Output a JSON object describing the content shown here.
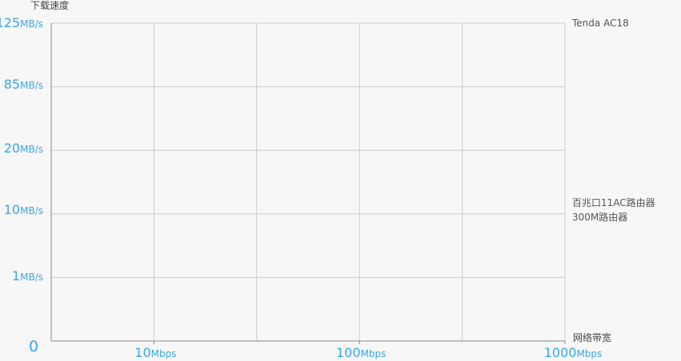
{
  "chart_data": {
    "type": "line",
    "title": "",
    "ylabel": "下载速度",
    "xlabel": "网络带宽",
    "y_ticks": [
      {
        "num": "0",
        "unit": ""
      },
      {
        "num": "1",
        "unit": "MB/s"
      },
      {
        "num": "10",
        "unit": "MB/s"
      },
      {
        "num": "20",
        "unit": "MB/s"
      },
      {
        "num": "85",
        "unit": "MB/s"
      },
      {
        "num": "125",
        "unit": "MB/s"
      }
    ],
    "x_ticks": [
      {
        "num": "10",
        "unit": "Mbps"
      },
      {
        "num": "100",
        "unit": "Mbps"
      },
      {
        "num": "1000",
        "unit": "Mbps"
      }
    ],
    "series": [
      {
        "name": "Tenda AC18"
      },
      {
        "name": "百兆口11AC路由器"
      },
      {
        "name": "300M路由器"
      }
    ],
    "grid": true,
    "colors": {
      "tick_labels": "#3aa6e6",
      "grid": "#cccccc",
      "axis": "#888888"
    }
  }
}
